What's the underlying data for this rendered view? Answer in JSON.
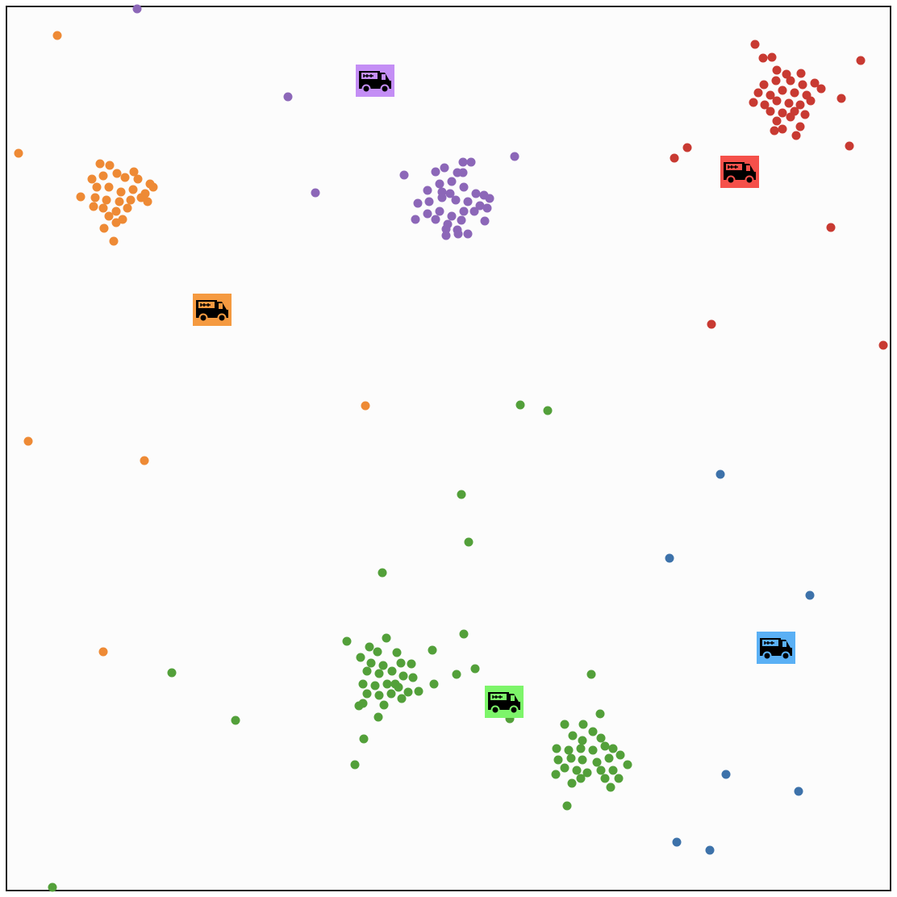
{
  "chart_data": {
    "type": "scatter",
    "xlim": [
      8,
      1104
    ],
    "ylim": [
      1104,
      8
    ],
    "grid": false,
    "series": [
      {
        "color": "#8c67b8",
        "marker": "dot",
        "x": [
          170,
          357,
          391,
          501,
          638,
          551,
          574,
          584,
          540,
          567,
          574,
          530,
          545,
          560,
          575,
          590,
          600,
          607,
          518,
          532,
          548,
          565,
          580,
          595,
          604,
          530,
          545,
          560,
          575,
          588,
          515,
          540,
          555,
          572,
          601,
          553,
          567,
          580,
          553,
          568,
          548,
          558
        ],
        "values": [
          11,
          120,
          239,
          217,
          194,
          208,
          201,
          201,
          213,
          214,
          214,
          236,
          228,
          225,
          232,
          240,
          242,
          246,
          252,
          250,
          245,
          248,
          250,
          255,
          258,
          265,
          262,
          268,
          262,
          262,
          272,
          272,
          278,
          273,
          274,
          284,
          285,
          290,
          292,
          290,
          238,
          240
        ]
      },
      {
        "color": "#ee8a35",
        "marker": "dot",
        "x": [
          71,
          23,
          35,
          179,
          453,
          128,
          124,
          136,
          145,
          166,
          114,
          128,
          155,
          171,
          186,
          120,
          135,
          150,
          165,
          180,
          190,
          100,
          118,
          132,
          148,
          162,
          175,
          183,
          116,
          128,
          144,
          158,
          135,
          152,
          144,
          129,
          141
        ],
        "values": [
          44,
          190,
          547,
          571,
          503,
          808,
          203,
          205,
          215,
          213,
          222,
          218,
          220,
          222,
          228,
          232,
          232,
          238,
          235,
          240,
          232,
          244,
          245,
          248,
          250,
          248,
          245,
          250,
          256,
          258,
          262,
          258,
          268,
          272,
          276,
          283,
          299
        ]
      },
      {
        "color": "#c83a32",
        "marker": "dot",
        "x": [
          936,
          1067,
          1043,
          1053,
          852,
          836,
          1030,
          882,
          1095,
          946,
          957,
          963,
          993,
          975,
          947,
          962,
          980,
          995,
          1010,
          1018,
          940,
          955,
          970,
          985,
          1000,
          934,
          948,
          963,
          978,
          992,
          1005,
          955,
          970,
          985,
          998,
          963,
          980,
          960,
          992,
          987,
          970
        ],
        "values": [
          55,
          75,
          122,
          181,
          183,
          196,
          282,
          402,
          428,
          72,
          71,
          87,
          91,
          92,
          105,
          100,
          100,
          105,
          103,
          110,
          115,
          118,
          112,
          115,
          118,
          127,
          130,
          125,
          128,
          130,
          125,
          138,
          140,
          138,
          142,
          150,
          145,
          162,
          157,
          168,
          160
        ]
      },
      {
        "color": "#3d72aa",
        "marker": "dot",
        "x": [
          893,
          830,
          1004,
          900,
          990,
          839,
          880
        ],
        "values": [
          588,
          692,
          738,
          960,
          981,
          1044,
          1054
        ]
      },
      {
        "color": "#53a03a",
        "marker": "dot",
        "x": [
          645,
          679,
          572,
          581,
          474,
          575,
          430,
          536,
          589,
          566,
          538,
          213,
          292,
          451,
          440,
          632,
          733,
          65,
          703,
          744,
          519,
          479,
          458,
          468,
          492,
          447,
          460,
          475,
          497,
          510,
          455,
          470,
          486,
          500,
          512,
          450,
          465,
          480,
          494,
          506,
          455,
          470,
          485,
          498,
          450,
          476,
          445,
          469,
          490,
          700,
          723,
          735,
          710,
          722,
          745,
          690,
          705,
          720,
          735,
          750,
          760,
          692,
          708,
          722,
          740,
          755,
          769,
          778,
          700,
          715,
          728,
          745,
          760,
          689,
          720,
          750,
          767,
          709,
          757
        ],
        "values": [
          502,
          509,
          613,
          672,
          710,
          786,
          795,
          806,
          829,
          836,
          848,
          834,
          893,
          916,
          948,
          891,
          836,
          1100,
          999,
          885,
          857,
          791,
          802,
          808,
          809,
          815,
          822,
          825,
          822,
          823,
          832,
          835,
          832,
          838,
          840,
          848,
          850,
          848,
          852,
          858,
          860,
          862,
          860,
          866,
          872,
          874,
          875,
          889,
          848,
          898,
          898,
          907,
          912,
          918,
          915,
          928,
          930,
          928,
          930,
          925,
          928,
          942,
          940,
          942,
          945,
          940,
          936,
          948,
          952,
          955,
          958,
          955,
          955,
          960,
          965,
          965,
          965,
          971,
          976
        ]
      },
      {
        "color": "#c48ef5",
        "marker": "truck",
        "x": [
          465
        ],
        "values": [
          100
        ]
      },
      {
        "color": "#f5504a",
        "marker": "truck",
        "x": [
          917
        ],
        "values": [
          213
        ]
      },
      {
        "color": "#f59a40",
        "marker": "truck",
        "x": [
          263
        ],
        "values": [
          384
        ]
      },
      {
        "color": "#7df56a",
        "marker": "truck",
        "x": [
          625
        ],
        "values": [
          870
        ]
      },
      {
        "color": "#5ab0f5",
        "marker": "truck",
        "x": [
          962
        ],
        "values": [
          803
        ]
      }
    ]
  }
}
